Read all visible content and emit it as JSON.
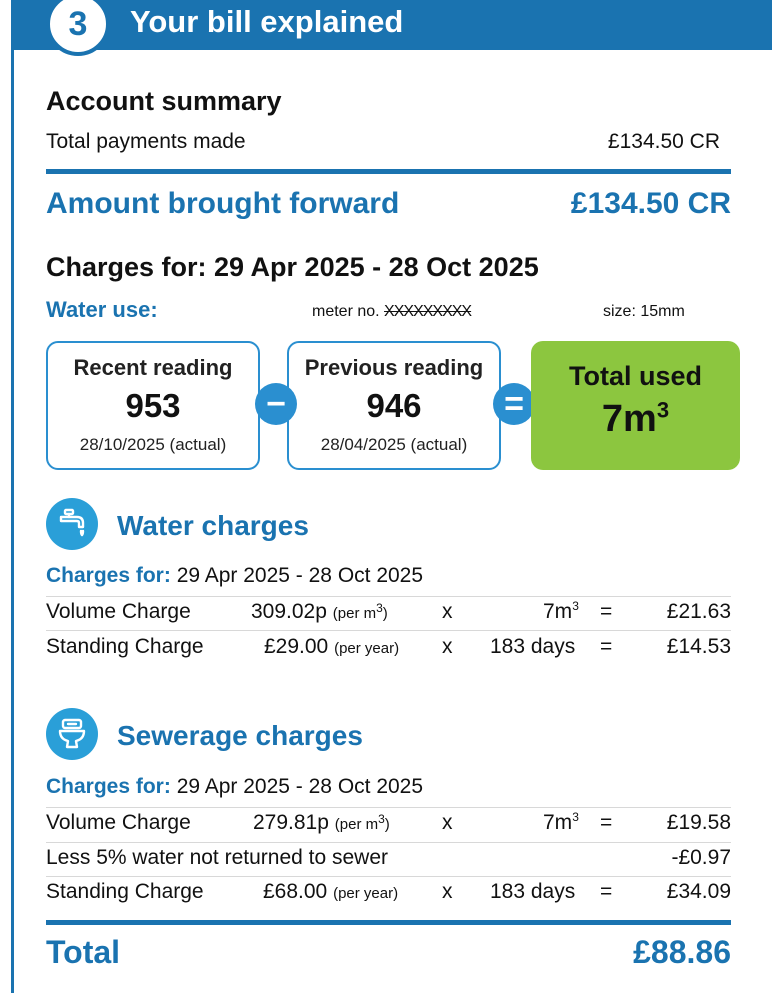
{
  "header": {
    "step": "3",
    "title": "Your bill explained"
  },
  "account_summary": {
    "title": "Account summary",
    "payments_label": "Total payments made",
    "payments_value": "£134.50 CR",
    "brought_forward_label": "Amount brought forward",
    "brought_forward_value": "£134.50 CR"
  },
  "charges_period": {
    "title": "Charges for: 29 Apr 2025 - 28 Oct 2025",
    "water_use_label": "Water use:",
    "meter_label": "meter no.",
    "meter_value": "XXXXXXXXX",
    "size_label": "size: 15mm"
  },
  "readings": {
    "recent_label": "Recent reading",
    "recent_value": "953",
    "recent_date": "28/10/2025 (actual)",
    "minus": "−",
    "previous_label": "Previous reading",
    "previous_value": "946",
    "previous_date": "28/04/2025 (actual)",
    "equals": "=",
    "total_label": "Total used",
    "total_value": "7m",
    "total_unit_sup": "3"
  },
  "water_charges": {
    "icon": "tap-icon",
    "title": "Water charges",
    "period_label": "Charges for:",
    "period_value": " 29 Apr 2025 - 28 Oct 2025",
    "rows": [
      {
        "name": "Volume Charge",
        "rate": "309.02p",
        "rate_unit": "(per m",
        "rate_unit_sup": "3",
        "rate_unit_end": ")",
        "x": "x",
        "qty": "7m",
        "qty_sup": "3",
        "eq": "=",
        "amount": "£21.63"
      },
      {
        "name": "Standing Charge",
        "rate": "£29.00",
        "rate_unit": "(per year)",
        "x": "x",
        "qty": "183 days",
        "eq": "=",
        "amount": "£14.53"
      }
    ]
  },
  "sewerage_charges": {
    "icon": "toilet-icon",
    "title": "Sewerage charges",
    "period_label": "Charges for:",
    "period_value": " 29 Apr 2025 - 28 Oct 2025",
    "rows": [
      {
        "name": "Volume Charge",
        "rate": "279.81p",
        "rate_unit": "(per m",
        "rate_unit_sup": "3",
        "rate_unit_end": ")",
        "x": "x",
        "qty": "7m",
        "qty_sup": "3",
        "eq": "=",
        "amount": "£19.58"
      },
      {
        "name": "Less 5% water not returned to sewer",
        "amount": "-£0.97"
      },
      {
        "name": "Standing Charge",
        "rate": "£68.00",
        "rate_unit": "(per year)",
        "x": "x",
        "qty": "183 days",
        "eq": "=",
        "amount": "£34.09"
      }
    ]
  },
  "total": {
    "label": "Total",
    "value": "£88.86"
  },
  "colors": {
    "brand_blue": "#1a73b0",
    "accent_blue": "#2a8fd0",
    "total_green": "#8cc63f"
  }
}
